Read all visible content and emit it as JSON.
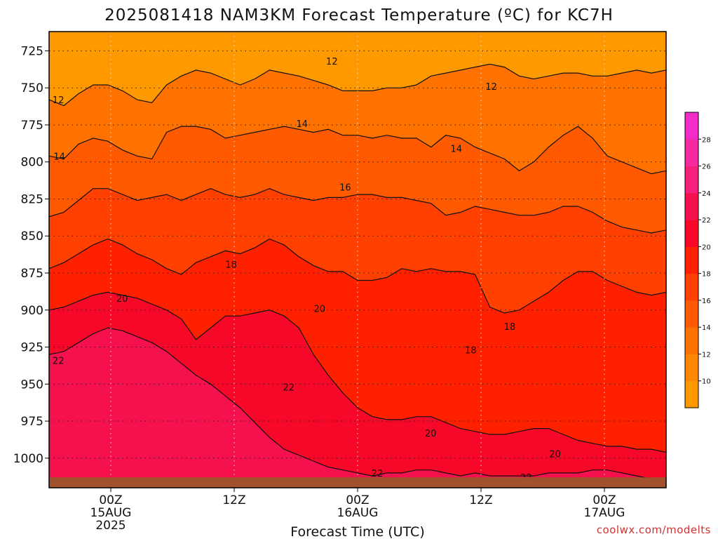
{
  "chart_data": {
    "type": "heatmap",
    "title": "2025081418 NAM3KM Forecast Temperature (ºC) for KC7H",
    "xlabel": "Forecast Time (UTC)",
    "ylabel": "",
    "credit": "coolwx.com/modelts",
    "y_ticks": [
      725,
      750,
      775,
      800,
      825,
      850,
      875,
      900,
      925,
      950,
      975,
      1000
    ],
    "ylim": [
      712,
      1020
    ],
    "x_ticks": [
      {
        "hour": 6,
        "line1": "00Z",
        "line2": "15AUG",
        "line3": "2025"
      },
      {
        "hour": 18,
        "line1": "12Z",
        "line2": "",
        "line3": ""
      },
      {
        "hour": 30,
        "line1": "00Z",
        "line2": "16AUG",
        "line3": ""
      },
      {
        "hour": 42,
        "line1": "12Z",
        "line2": "",
        "line3": ""
      },
      {
        "hour": 54,
        "line1": "00Z",
        "line2": "17AUG",
        "line3": ""
      }
    ],
    "xlim": [
      0,
      60
    ],
    "colorbar_levels": [
      10,
      12,
      14,
      16,
      18,
      20,
      22,
      24,
      26,
      28
    ],
    "colorbar_colors": [
      "#ff9900",
      "#ff8800",
      "#ff7200",
      "#ff5a00",
      "#ff4000",
      "#ff2000",
      "#f80828",
      "#f5104e",
      "#f5207a",
      "#f52aa0",
      "#f22cc8"
    ],
    "contours": [
      {
        "level": 12,
        "pressures": [
          758,
          762,
          754,
          748,
          748,
          752,
          758,
          760,
          748,
          742,
          738,
          740,
          744,
          748,
          744,
          738,
          740,
          742,
          745,
          748,
          752,
          752,
          752,
          750,
          750,
          748,
          742,
          740,
          738,
          736,
          734,
          736,
          742,
          744,
          742,
          740,
          740,
          742,
          742,
          740,
          738,
          740,
          738
        ]
      },
      {
        "level": 14,
        "pressures": [
          796,
          798,
          788,
          784,
          786,
          792,
          796,
          798,
          780,
          776,
          776,
          778,
          784,
          782,
          780,
          778,
          776,
          778,
          780,
          778,
          782,
          782,
          784,
          782,
          784,
          784,
          790,
          782,
          784,
          790,
          794,
          798,
          806,
          800,
          790,
          782,
          776,
          784,
          796,
          800,
          804,
          808,
          806
        ]
      },
      {
        "level": 16,
        "pressures": [
          837,
          834,
          826,
          818,
          818,
          822,
          826,
          824,
          822,
          826,
          822,
          818,
          822,
          824,
          822,
          818,
          822,
          824,
          826,
          824,
          824,
          822,
          822,
          824,
          824,
          826,
          828,
          836,
          834,
          830,
          832,
          834,
          836,
          836,
          834,
          830,
          830,
          834,
          840,
          844,
          846,
          848,
          846
        ]
      },
      {
        "level": 18,
        "pressures": [
          872,
          868,
          862,
          856,
          852,
          856,
          862,
          866,
          872,
          876,
          868,
          864,
          860,
          862,
          858,
          852,
          856,
          864,
          870,
          874,
          874,
          880,
          880,
          878,
          872,
          874,
          872,
          874,
          874,
          876,
          898,
          902,
          900,
          894,
          888,
          880,
          874,
          874,
          880,
          884,
          888,
          890,
          888
        ]
      },
      {
        "level": 20,
        "pressures": [
          900,
          898,
          894,
          890,
          888,
          890,
          892,
          896,
          900,
          906,
          920,
          912,
          904,
          904,
          902,
          900,
          904,
          912,
          930,
          944,
          956,
          966,
          972,
          974,
          974,
          972,
          972,
          976,
          980,
          982,
          984,
          984,
          982,
          980,
          980,
          984,
          988,
          990,
          992,
          992,
          994,
          994,
          996
        ]
      },
      {
        "level": 22,
        "pressures": [
          930,
          928,
          922,
          916,
          912,
          914,
          918,
          922,
          928,
          936,
          944,
          950,
          958,
          966,
          976,
          986,
          994,
          998,
          1002,
          1006,
          1008,
          1010,
          1012,
          1010,
          1010,
          1008,
          1008,
          1010,
          1012,
          1010,
          1012,
          1012,
          1012,
          1012,
          1010,
          1010,
          1010,
          1008,
          1008,
          1010,
          1012,
          1014,
          1014
        ]
      }
    ],
    "contour_labels": [
      {
        "value": "12",
        "hour": 27.5,
        "pressure": 732
      },
      {
        "value": "12",
        "hour": 0.9,
        "pressure": 758
      },
      {
        "value": "12",
        "hour": 43.0,
        "pressure": 749
      },
      {
        "value": "14",
        "hour": 24.6,
        "pressure": 774
      },
      {
        "value": "14",
        "hour": 1.0,
        "pressure": 796
      },
      {
        "value": "14",
        "hour": 39.6,
        "pressure": 791
      },
      {
        "value": "16",
        "hour": 28.8,
        "pressure": 817
      },
      {
        "value": "18",
        "hour": 17.7,
        "pressure": 869
      },
      {
        "value": "18",
        "hour": 44.8,
        "pressure": 911
      },
      {
        "value": "18",
        "hour": 41.0,
        "pressure": 927
      },
      {
        "value": "20",
        "hour": 7.1,
        "pressure": 892
      },
      {
        "value": "20",
        "hour": 26.3,
        "pressure": 899
      },
      {
        "value": "20",
        "hour": 37.1,
        "pressure": 983
      },
      {
        "value": "20",
        "hour": 49.2,
        "pressure": 997
      },
      {
        "value": "22",
        "hour": 0.9,
        "pressure": 934
      },
      {
        "value": "22",
        "hour": 23.3,
        "pressure": 952
      },
      {
        "value": "22",
        "hour": 31.9,
        "pressure": 1010
      },
      {
        "value": "22",
        "hour": 46.4,
        "pressure": 1013
      }
    ],
    "ground_pressure": 1013,
    "grid": true,
    "legend": "colorbar-right"
  }
}
